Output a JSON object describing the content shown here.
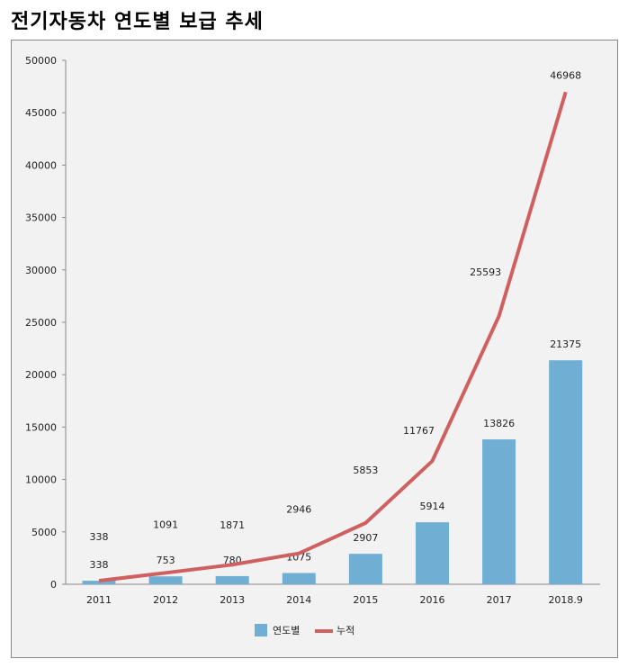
{
  "title": "전기자동차 연도별 보급 추세",
  "chart_data": {
    "type": "bar+line",
    "title": "전기자동차 연도별 보급 추세",
    "categories": [
      "2011",
      "2012",
      "2013",
      "2014",
      "2015",
      "2016",
      "2017",
      "2018.9"
    ],
    "series": [
      {
        "name": "연도별",
        "type": "bar",
        "color": "#70afd3",
        "values": [
          338,
          753,
          780,
          1075,
          2907,
          5914,
          13826,
          21375
        ]
      },
      {
        "name": "누적",
        "type": "line",
        "color": "#d06060",
        "values": [
          338,
          1091,
          1871,
          2946,
          5853,
          11767,
          25593,
          46968
        ]
      }
    ],
    "ylim": [
      0,
      50000
    ],
    "yticks": [
      0,
      5000,
      10000,
      15000,
      20000,
      25000,
      30000,
      35000,
      40000,
      45000,
      50000
    ],
    "grid": false,
    "legend": "bottom"
  }
}
